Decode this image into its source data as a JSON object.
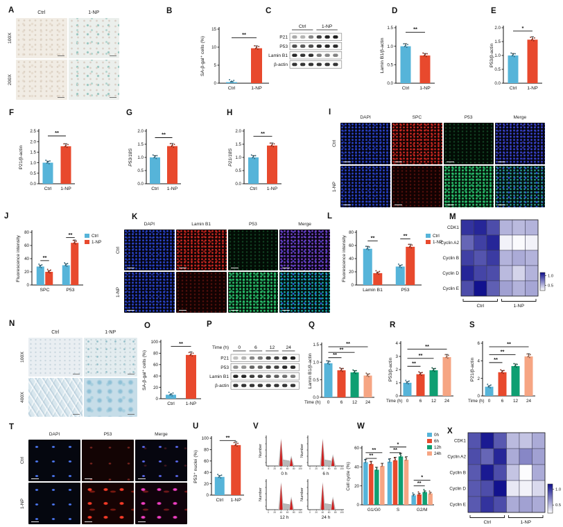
{
  "colors": {
    "ctrl": "#56B4D9",
    "np": "#E8492D",
    "t0": "#56B4D9",
    "t6": "#E8492D",
    "t12": "#0F9F72",
    "t24": "#F6A583",
    "heat_high": "#0D0D8C",
    "heat_low": "#FFFFFF"
  },
  "panels": {
    "A": {
      "label": "A",
      "grid": {
        "cols": [
          "Ctrl",
          "1-NP"
        ],
        "rows": [
          "100X",
          "200X"
        ],
        "cells": [
          [
            "tissue-ctrl",
            "tissue-1np"
          ],
          [
            "tissue-ctrl",
            "tissue-1np"
          ]
        ]
      }
    },
    "B": {
      "label": "B",
      "chart": {
        "type": "bar",
        "categories": [
          "Ctrl",
          "1-NP"
        ],
        "values": [
          0.3,
          9.7
        ],
        "colorKeys": [
          "ctrl",
          "np"
        ],
        "ylabel": "SA-β-gal⁺ cells (%)",
        "ymax": 15,
        "yticks": [
          0,
          5,
          10,
          15
        ],
        "dec": 0,
        "sig": [
          {
            "a": 0,
            "b": 1,
            "y": 12.6,
            "label": "**"
          }
        ]
      }
    },
    "C": {
      "label": "C",
      "blot": {
        "groups": [
          {
            "label": "Ctrl",
            "span": 3
          },
          {
            "label": "1-NP",
            "span": 3
          }
        ],
        "rows": [
          {
            "label": "P21",
            "lanes": [
              0.35,
              0.3,
              0.5,
              0.8,
              0.92,
              0.95
            ]
          },
          {
            "label": "P53",
            "lanes": [
              0.75,
              0.7,
              0.75,
              0.9,
              0.92,
              0.9
            ]
          },
          {
            "label": "Lamin B1",
            "lanes": [
              0.9,
              0.85,
              0.88,
              0.55,
              0.5,
              0.52
            ]
          },
          {
            "label": "β-actin",
            "lanes": [
              0.85,
              0.85,
              0.85,
              0.85,
              0.85,
              0.85
            ]
          }
        ]
      }
    },
    "D": {
      "label": "D",
      "chart": {
        "type": "bar",
        "categories": [
          "Ctrl",
          "1-NP"
        ],
        "values": [
          1.0,
          0.75
        ],
        "colorKeys": [
          "ctrl",
          "np"
        ],
        "ylabel": "Lamin B1/β-actin",
        "ymax": 1.5,
        "yticks": [
          0,
          0.5,
          1.0,
          1.5
        ],
        "dec": 1,
        "sig": [
          {
            "a": 0,
            "b": 1,
            "y": 1.38,
            "label": "**"
          }
        ]
      }
    },
    "E": {
      "label": "E",
      "chart": {
        "type": "bar",
        "categories": [
          "Ctrl",
          "1-NP"
        ],
        "values": [
          1.0,
          1.57
        ],
        "colorKeys": [
          "ctrl",
          "np"
        ],
        "ylabel": "P53/β-actin",
        "ymax": 2.0,
        "yticks": [
          0,
          0.5,
          1.0,
          1.5,
          2.0
        ],
        "dec": 1,
        "sig": [
          {
            "a": 0,
            "b": 1,
            "y": 1.88,
            "label": "*"
          }
        ]
      }
    },
    "F": {
      "label": "F",
      "chart": {
        "type": "bar",
        "categories": [
          "Ctrl",
          "1-NP"
        ],
        "values": [
          1.0,
          1.78
        ],
        "colorKeys": [
          "ctrl",
          "np"
        ],
        "ylabel": "P21/β-actin",
        "ymax": 2.5,
        "yticks": [
          0,
          0.5,
          1.0,
          1.5,
          2.0,
          2.5
        ],
        "dec": 1,
        "sig": [
          {
            "a": 0,
            "b": 1,
            "y": 2.27,
            "label": "**"
          }
        ]
      }
    },
    "G": {
      "label": "G",
      "chart": {
        "type": "bar",
        "categories": [
          "Ctrl",
          "1-NP"
        ],
        "values": [
          1.0,
          1.43
        ],
        "colorKeys": [
          "ctrl",
          "np"
        ],
        "ylabel": "P53/18S",
        "italic": true,
        "ymax": 2.0,
        "yticks": [
          0,
          0.5,
          1.0,
          1.5,
          2.0
        ],
        "dec": 1,
        "sig": [
          {
            "a": 0,
            "b": 1,
            "y": 1.75,
            "label": "**"
          }
        ]
      }
    },
    "H": {
      "label": "H",
      "chart": {
        "type": "bar",
        "categories": [
          "Ctrl",
          "1-NP"
        ],
        "values": [
          1.0,
          1.45
        ],
        "colorKeys": [
          "ctrl",
          "np"
        ],
        "ylabel": "P21/18S",
        "italic": true,
        "ymax": 2.0,
        "yticks": [
          0,
          0.5,
          1.0,
          1.5,
          2.0
        ],
        "dec": 1,
        "sig": [
          {
            "a": 0,
            "b": 1,
            "y": 1.8,
            "label": "**"
          }
        ]
      }
    },
    "I": {
      "label": "I",
      "grid": {
        "cols": [
          "DAPI",
          "SPC",
          "P53",
          "Merge"
        ],
        "rows": [
          "Ctrl",
          "1-NP"
        ],
        "cells": [
          [
            "dapi",
            "red-bright",
            "green-dim",
            "merge-blue"
          ],
          [
            "dapi",
            "red-dim",
            "green-bright",
            "merge-bluegreen"
          ]
        ]
      }
    },
    "J": {
      "label": "J",
      "chart": {
        "type": "grouped-bar",
        "categories": [
          "SPC",
          "P53"
        ],
        "series": [
          {
            "name": "Ctrl",
            "colorKey": "ctrl",
            "values": [
              28,
              30
            ]
          },
          {
            "name": "1-NP",
            "colorKey": "np",
            "values": [
              20,
              64
            ]
          }
        ],
        "ylabel": "Fluorescence intensity",
        "ymax": 80,
        "yticks": [
          0,
          20,
          40,
          60,
          80
        ],
        "dec": 0,
        "legend": [
          {
            "label": "Ctrl",
            "colorKey": "ctrl"
          },
          {
            "label": "1-NP",
            "colorKey": "np"
          }
        ],
        "sig": [
          {
            "a": 0,
            "s1": 0,
            "s2": 1,
            "y": 37,
            "label": "**"
          },
          {
            "a": 1,
            "s1": 0,
            "s2": 1,
            "y": 72,
            "label": "**"
          }
        ]
      }
    },
    "K": {
      "label": "K",
      "grid": {
        "cols": [
          "DAPI",
          "Lamin B1",
          "P53",
          "Merge"
        ],
        "rows": [
          "Ctrl",
          "1-NP"
        ],
        "cells": [
          [
            "dapi",
            "red-bright",
            "green-dim",
            "merge-purple"
          ],
          [
            "dapi",
            "red-dim",
            "green-bright",
            "merge-teal"
          ]
        ]
      }
    },
    "L": {
      "label": "L",
      "ch art_note": "",
      "chart": {
        "type": "grouped-bar",
        "categories": [
          "Lamin B1",
          "P53"
        ],
        "series": [
          {
            "name": "Ctrl",
            "colorKey": "ctrl",
            "values": [
              55,
              28
            ]
          },
          {
            "name": "1-NP",
            "colorKey": "np",
            "values": [
              18,
              58
            ]
          }
        ],
        "ylabel": "Fluorescence intensity",
        "ymax": 80,
        "yticks": [
          0,
          20,
          40,
          60,
          80
        ],
        "dec": 0,
        "legend": [
          {
            "label": "Ctrl",
            "colorKey": "ctrl"
          },
          {
            "label": "1-NP",
            "colorKey": "np"
          }
        ],
        "sig": [
          {
            "a": 0,
            "s1": 0,
            "s2": 1,
            "y": 67,
            "label": "**"
          },
          {
            "a": 1,
            "s1": 0,
            "s2": 1,
            "y": 70,
            "label": "**"
          }
        ]
      }
    },
    "M": {
      "label": "M",
      "heatmap": {
        "rows": [
          "CDK1",
          "Cyclin A2",
          "Cyclin B",
          "Cyclin D",
          "Cyclin E"
        ],
        "group_labels": [
          "Ctrl",
          "1-NP"
        ],
        "colorbar": [
          "1.0",
          "0.5"
        ],
        "values": [
          [
            1.05,
            1.1,
            0.95,
            0.55,
            0.52,
            0.55
          ],
          [
            0.85,
            1.0,
            1.1,
            0.3,
            0.27,
            0.3
          ],
          [
            1.0,
            0.92,
            1.02,
            0.55,
            0.58,
            0.55
          ],
          [
            1.1,
            0.98,
            0.95,
            0.52,
            0.42,
            0.55
          ],
          [
            0.95,
            1.18,
            0.88,
            0.62,
            0.55,
            0.6
          ]
        ]
      }
    },
    "N": {
      "label": "N",
      "grid": {
        "cols": [
          "Ctrl",
          "1-NP"
        ],
        "rows": [
          "100X",
          "400X"
        ],
        "cells": [
          [
            "cells-ctrl-100x",
            "cells-1np-100x"
          ],
          [
            "cells-ctrl-400x",
            "cells-1np-400x"
          ]
        ]
      }
    },
    "O": {
      "label": "O",
      "chart": {
        "type": "bar",
        "categories": [
          "Ctrl",
          "1-NP"
        ],
        "values": [
          7,
          77
        ],
        "colorKeys": [
          "ctrl",
          "np"
        ],
        "ylabel": "SA-β-gal⁺ cells (%)",
        "ymax": 100,
        "yticks": [
          0,
          20,
          40,
          60,
          80,
          100
        ],
        "dec": 0,
        "sig": [
          {
            "a": 0,
            "b": 1,
            "y": 92,
            "label": "**"
          }
        ]
      }
    },
    "P": {
      "label": "P",
      "blot": {
        "corner": "Time (h)",
        "groups": [
          {
            "label": "0",
            "span": 2
          },
          {
            "label": "6",
            "span": 2
          },
          {
            "label": "12",
            "span": 2
          },
          {
            "label": "24",
            "span": 2
          }
        ],
        "rows": [
          {
            "label": "P21",
            "lanes": [
              0.25,
              0.3,
              0.5,
              0.55,
              0.78,
              0.8,
              0.92,
              0.95
            ]
          },
          {
            "label": "P53",
            "lanes": [
              0.45,
              0.45,
              0.65,
              0.65,
              0.8,
              0.8,
              0.9,
              0.9
            ]
          },
          {
            "label": "Lamin B1",
            "lanes": [
              0.92,
              0.9,
              0.82,
              0.8,
              0.7,
              0.68,
              0.6,
              0.55
            ]
          },
          {
            "label": "β-actin",
            "lanes": [
              0.85,
              0.85,
              0.85,
              0.85,
              0.85,
              0.85,
              0.85,
              0.85
            ]
          }
        ]
      }
    },
    "Q": {
      "label": "Q",
      "chart": {
        "type": "bar",
        "categories": [
          "0",
          "6",
          "12",
          "24"
        ],
        "values": [
          0.97,
          0.77,
          0.71,
          0.62
        ],
        "colorKeys": [
          "t0",
          "t6",
          "t12",
          "t24"
        ],
        "ylabel": "Lamin B1/β-actin",
        "xlabel": "Time (h)",
        "ymax": 1.5,
        "yticks": [
          0,
          0.5,
          1.0,
          1.5
        ],
        "dec": 1,
        "sig": [
          {
            "a": 0,
            "b": 1,
            "y": 1.13,
            "label": "**"
          },
          {
            "a": 0,
            "b": 2,
            "y": 1.28,
            "label": "**"
          },
          {
            "a": 0,
            "b": 3,
            "y": 1.44,
            "label": "**"
          }
        ]
      }
    },
    "R": {
      "label": "R",
      "chart": {
        "type": "bar",
        "categories": [
          "0",
          "6",
          "12",
          "24"
        ],
        "values": [
          1.0,
          1.65,
          1.95,
          2.95
        ],
        "colorKeys": [
          "t0",
          "t6",
          "t12",
          "t24"
        ],
        "ylabel": "P53/β-actin",
        "xlabel": "Time (h)",
        "ymax": 4,
        "yticks": [
          0,
          1,
          2,
          3,
          4
        ],
        "dec": 0,
        "sig": [
          {
            "a": 0,
            "b": 1,
            "y": 2.25,
            "label": "**"
          },
          {
            "a": 0,
            "b": 2,
            "y": 2.85,
            "label": "**"
          },
          {
            "a": 0,
            "b": 3,
            "y": 3.55,
            "label": "**"
          }
        ]
      }
    },
    "S": {
      "label": "S",
      "chart": {
        "type": "bar",
        "categories": [
          "0",
          "6",
          "12",
          "24"
        ],
        "values": [
          1.05,
          2.7,
          3.4,
          4.5
        ],
        "colorKeys": [
          "t0",
          "t6",
          "t12",
          "t24"
        ],
        "ylabel": "P21/β-actin",
        "xlabel": "Time (h)",
        "ymax": 6,
        "yticks": [
          0,
          2,
          4,
          6
        ],
        "dec": 0,
        "sig": [
          {
            "a": 0,
            "b": 1,
            "y": 3.8,
            "label": "**"
          },
          {
            "a": 0,
            "b": 2,
            "y": 4.7,
            "label": "**"
          },
          {
            "a": 0,
            "b": 3,
            "y": 5.6,
            "label": "**"
          }
        ]
      }
    },
    "T": {
      "label": "T",
      "grid": {
        "cols": [
          "DAPI",
          "P53",
          "Merge"
        ],
        "rows": [
          "Ctrl",
          "1-NP"
        ],
        "cells": [
          [
            "nuclei-blue",
            "p53-red-dim",
            "merge-ctrl"
          ],
          [
            "nuclei-blue",
            "p53-red-bright",
            "merge-magenta"
          ]
        ]
      }
    },
    "U": {
      "label": "U",
      "chart": {
        "type": "bar",
        "categories": [
          "Ctrl",
          "1-NP"
        ],
        "values": [
          32,
          88
        ],
        "colorKeys": [
          "ctrl",
          "np"
        ],
        "ylabel": "P53⁺ nuclei (%)",
        "ymax": 100,
        "yticks": [
          0,
          20,
          40,
          60,
          80,
          100
        ],
        "dec": 0,
        "sig": [
          {
            "a": 0,
            "b": 1,
            "y": 96,
            "label": "**"
          }
        ]
      }
    },
    "V": {
      "label": "V",
      "flow": {
        "ylabel": "Number",
        "x_ticks": [
          "0",
          "20",
          "40",
          "60",
          "80",
          "100"
        ],
        "plots": [
          {
            "label": "0 h",
            "g2h": 12
          },
          {
            "label": "6 h",
            "g2h": 14
          },
          {
            "label": "12 h",
            "g2h": 16
          },
          {
            "label": "24 h",
            "g2h": 16
          }
        ]
      }
    },
    "W": {
      "label": "W",
      "chart": {
        "type": "grouped-bar",
        "categories": [
          "G1/G0",
          "S",
          "G2/M"
        ],
        "series": [
          {
            "name": "0h",
            "colorKey": "t0",
            "values": [
              45,
              45.5,
              10
            ]
          },
          {
            "name": "6h",
            "colorKey": "t6",
            "values": [
              43,
              47,
              11
            ]
          },
          {
            "name": "12h",
            "colorKey": "t12",
            "values": [
              37,
              51,
              13.5
            ]
          },
          {
            "name": "24h",
            "colorKey": "t24",
            "values": [
              41,
              47.5,
              12
            ]
          }
        ],
        "ylabel": "Cell cycle (%)",
        "ymax": 60,
        "yticks": [
          0,
          20,
          40,
          60
        ],
        "dec": 0,
        "legend": [
          {
            "label": "0h",
            "colorKey": "t0"
          },
          {
            "label": "6h",
            "colorKey": "t6"
          },
          {
            "label": "12h",
            "colorKey": "t12"
          },
          {
            "label": "24h",
            "colorKey": "t24"
          }
        ],
        "sig": [
          {
            "a": 0,
            "s1": 0,
            "s2": 2,
            "y": 49,
            "label": "**"
          },
          {
            "a": 0,
            "s1": 0,
            "s2": 3,
            "y": 55,
            "label": "**"
          },
          {
            "a": 1,
            "s1": 0,
            "s2": 2,
            "y": 55,
            "label": "**"
          },
          {
            "a": 1,
            "s1": 0,
            "s2": 3,
            "y": 61,
            "label": "*"
          },
          {
            "a": 2,
            "s1": 0,
            "s2": 2,
            "y": 20,
            "label": "**"
          },
          {
            "a": 2,
            "s1": 0,
            "s2": 3,
            "y": 26,
            "label": "*"
          }
        ]
      }
    },
    "X": {
      "label": "X",
      "heatmap": {
        "rows": [
          "CDK1",
          "Cyclin A2",
          "Cyclin B",
          "Cyclin D",
          "Cyclin E"
        ],
        "group_labels": [
          "Ctrl",
          "1-NP"
        ],
        "colorbar": [
          "1.0",
          "0.5"
        ],
        "values": [
          [
            0.92,
            1.15,
            0.9,
            0.52,
            0.48,
            0.58
          ],
          [
            0.95,
            0.85,
            1.1,
            0.58,
            0.72,
            0.62
          ],
          [
            0.9,
            1.15,
            0.95,
            0.48,
            0.26,
            0.58
          ],
          [
            0.9,
            0.95,
            1.18,
            0.34,
            0.3,
            0.4
          ],
          [
            0.9,
            1.05,
            0.95,
            0.58,
            0.62,
            0.58
          ]
        ]
      }
    }
  }
}
